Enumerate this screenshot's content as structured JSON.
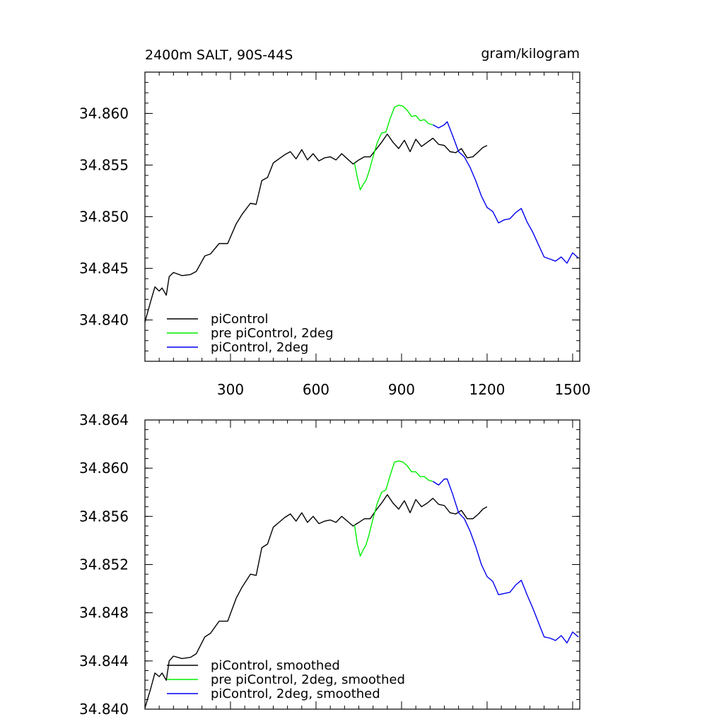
{
  "chart_data": [
    {
      "type": "line",
      "title_left": "2400m SALT, 90S-44S",
      "title_right": "gram/kilogram",
      "xlabel": "",
      "ylabel": "",
      "xlim": [
        0,
        1525
      ],
      "ylim": [
        34.836,
        34.864
      ],
      "xticks": [
        300,
        600,
        900,
        1200,
        1500
      ],
      "xtick_labels": [
        "300",
        "600",
        "900",
        "1200",
        "1500"
      ],
      "yticks": [
        34.84,
        34.845,
        34.85,
        34.855,
        34.86
      ],
      "ytick_labels": [
        "34.840",
        "34.845",
        "34.850",
        "34.855",
        "34.860"
      ],
      "grid": false,
      "legend_position": "bottom-left",
      "series": [
        {
          "name": "piControl",
          "color": "#000000",
          "x": [
            0,
            20,
            35,
            50,
            60,
            75,
            85,
            100,
            130,
            160,
            180,
            210,
            230,
            260,
            290,
            320,
            340,
            370,
            390,
            410,
            430,
            450,
            470,
            490,
            510,
            530,
            550,
            570,
            590,
            610,
            630,
            650,
            670,
            690,
            710,
            730,
            750,
            770,
            790,
            810,
            830,
            850,
            870,
            890,
            910,
            930,
            950,
            970,
            990,
            1010,
            1030,
            1050,
            1070,
            1090,
            1110,
            1130,
            1150,
            1170,
            1185,
            1200
          ],
          "y": [
            34.8398,
            34.8418,
            34.8432,
            34.8428,
            34.8431,
            34.8424,
            34.8442,
            34.8446,
            34.8443,
            34.8444,
            34.8447,
            34.8462,
            34.8464,
            34.8474,
            34.8474,
            34.8493,
            34.8502,
            34.8513,
            34.8512,
            34.8535,
            34.8538,
            34.8552,
            34.8556,
            34.856,
            34.8563,
            34.8556,
            34.8565,
            34.8555,
            34.8561,
            34.8554,
            34.8557,
            34.8558,
            34.8555,
            34.8561,
            34.8556,
            34.8551,
            34.8555,
            34.8558,
            34.8558,
            34.8565,
            34.8572,
            34.858,
            34.8572,
            34.8566,
            34.8574,
            34.8563,
            34.8575,
            34.8568,
            34.8572,
            34.8576,
            34.857,
            34.8569,
            34.8563,
            34.8562,
            34.8566,
            34.8557,
            34.8558,
            34.8563,
            34.8567,
            34.8569
          ]
        },
        {
          "name": "pre piControl, 2deg",
          "color": "#00ee00",
          "x": [
            735,
            745,
            755,
            765,
            775,
            785,
            800,
            815,
            830,
            845,
            860,
            875,
            890,
            905,
            920,
            935,
            950,
            965,
            980,
            995,
            1010
          ],
          "y": [
            34.8552,
            34.8538,
            34.8526,
            34.8531,
            34.8535,
            34.8543,
            34.8558,
            34.8572,
            34.8581,
            34.8582,
            34.8595,
            34.8606,
            34.8608,
            34.8607,
            34.8603,
            34.8597,
            34.8598,
            34.8593,
            34.8594,
            34.859,
            34.8589
          ]
        },
        {
          "name": "piControl, 2deg",
          "color": "#0000ee",
          "x": [
            1010,
            1030,
            1050,
            1060,
            1080,
            1100,
            1120,
            1140,
            1160,
            1180,
            1200,
            1220,
            1240,
            1260,
            1280,
            1300,
            1320,
            1340,
            1360,
            1380,
            1400,
            1420,
            1440,
            1460,
            1480,
            1500,
            1520
          ],
          "y": [
            34.8589,
            34.8586,
            34.8589,
            34.8592,
            34.8578,
            34.8563,
            34.8558,
            34.8548,
            34.8535,
            34.852,
            34.8509,
            34.8505,
            34.8494,
            34.8497,
            34.8498,
            34.8504,
            34.8508,
            34.8495,
            34.8485,
            34.8473,
            34.8461,
            34.8459,
            34.8457,
            34.8461,
            34.8455,
            34.8465,
            34.846
          ]
        }
      ]
    },
    {
      "type": "line",
      "title_left": "",
      "title_right": "",
      "xlabel": "",
      "ylabel": "",
      "xlim": [
        0,
        1525
      ],
      "ylim": [
        34.84,
        34.864
      ],
      "xticks": [
        300,
        600,
        900,
        1200,
        1500
      ],
      "xtick_labels": [],
      "yticks": [
        34.84,
        34.844,
        34.848,
        34.852,
        34.856,
        34.86,
        34.864
      ],
      "ytick_labels": [
        "34.840",
        "34.844",
        "34.848",
        "34.852",
        "34.856",
        "34.860",
        "34.864"
      ],
      "grid": false,
      "legend_position": "bottom-left",
      "series": [
        {
          "name": "piControl, smoothed",
          "color": "#000000",
          "x": [
            0,
            20,
            35,
            50,
            60,
            75,
            85,
            100,
            130,
            160,
            180,
            210,
            230,
            260,
            290,
            320,
            340,
            370,
            390,
            410,
            430,
            450,
            470,
            490,
            510,
            530,
            550,
            570,
            590,
            610,
            630,
            650,
            670,
            690,
            710,
            730,
            750,
            770,
            790,
            810,
            830,
            850,
            870,
            890,
            910,
            930,
            950,
            970,
            990,
            1010,
            1030,
            1050,
            1070,
            1090,
            1110,
            1130,
            1150,
            1170,
            1185,
            1200
          ],
          "y": [
            34.8401,
            34.8417,
            34.843,
            34.8427,
            34.843,
            34.8424,
            34.844,
            34.8444,
            34.8442,
            34.8443,
            34.8446,
            34.846,
            34.8463,
            34.8473,
            34.8473,
            34.8492,
            34.8501,
            34.8512,
            34.8511,
            34.8534,
            34.8537,
            34.8551,
            34.8555,
            34.8559,
            34.8562,
            34.8556,
            34.8563,
            34.8555,
            34.856,
            34.8554,
            34.8556,
            34.8557,
            34.8555,
            34.856,
            34.8556,
            34.8552,
            34.8555,
            34.8558,
            34.8558,
            34.8565,
            34.8571,
            34.8578,
            34.8571,
            34.8566,
            34.8573,
            34.8563,
            34.8574,
            34.8568,
            34.8571,
            34.8575,
            34.857,
            34.8569,
            34.8563,
            34.8562,
            34.8565,
            34.8558,
            34.8558,
            34.8562,
            34.8566,
            34.8568
          ]
        },
        {
          "name": "pre piControl, 2deg, smoothed",
          "color": "#00ee00",
          "x": [
            735,
            745,
            755,
            765,
            775,
            785,
            800,
            815,
            830,
            845,
            860,
            875,
            890,
            905,
            920,
            935,
            950,
            965,
            980,
            995,
            1010
          ],
          "y": [
            34.8553,
            34.8537,
            34.8527,
            34.8532,
            34.8536,
            34.8544,
            34.8558,
            34.8571,
            34.858,
            34.8582,
            34.8594,
            34.8605,
            34.8606,
            34.8605,
            34.8602,
            34.8597,
            34.8597,
            34.8593,
            34.8593,
            34.859,
            34.8589
          ]
        },
        {
          "name": "piControl, 2deg, smoothed",
          "color": "#0000ee",
          "x": [
            1010,
            1030,
            1050,
            1060,
            1080,
            1100,
            1120,
            1140,
            1160,
            1180,
            1200,
            1220,
            1240,
            1260,
            1280,
            1300,
            1320,
            1340,
            1360,
            1380,
            1400,
            1420,
            1440,
            1460,
            1480,
            1500,
            1520
          ],
          "y": [
            34.8589,
            34.8586,
            34.8591,
            34.8591,
            34.8578,
            34.8563,
            34.8558,
            34.8548,
            34.8535,
            34.852,
            34.851,
            34.8506,
            34.8495,
            34.8496,
            34.8497,
            34.8503,
            34.8507,
            34.8495,
            34.8484,
            34.8472,
            34.846,
            34.8459,
            34.8457,
            34.8461,
            34.8455,
            34.8464,
            34.846
          ]
        }
      ]
    }
  ]
}
